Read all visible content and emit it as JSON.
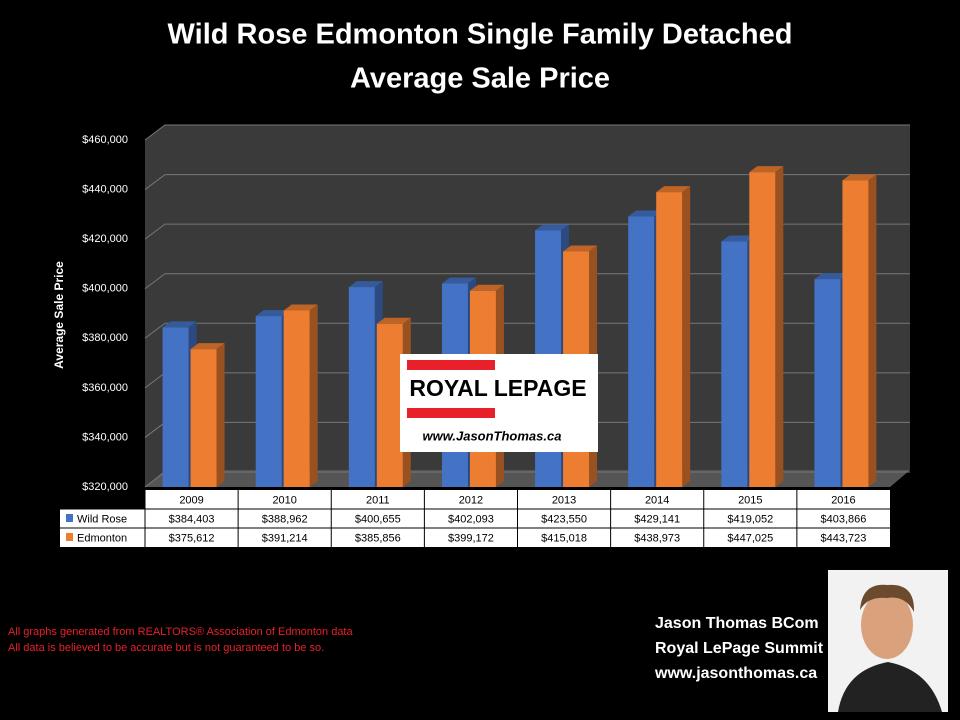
{
  "chart_data": {
    "type": "bar",
    "title": "Wild Rose Edmonton Single Family Detached",
    "subtitle": "Average Sale Price",
    "y_label": "Average Sale Price",
    "categories": [
      "2009",
      "2010",
      "2011",
      "2012",
      "2013",
      "2014",
      "2015",
      "2016"
    ],
    "series": [
      {
        "name": "Wild Rose",
        "color": "#4472c4",
        "values": [
          384403,
          388962,
          400655,
          402093,
          423550,
          429141,
          419052,
          403866
        ],
        "value_labels": [
          "$384,403",
          "$388,962",
          "$400,655",
          "$402,093",
          "$423,550",
          "$429,141",
          "$419,052",
          "$403,866"
        ]
      },
      {
        "name": "Edmonton",
        "color": "#ed7d31",
        "values": [
          375612,
          391214,
          385856,
          399172,
          415018,
          438973,
          447025,
          443723
        ],
        "value_labels": [
          "$375,612",
          "$391,214",
          "$385,856",
          "$399,172",
          "$415,018",
          "$438,973",
          "$447,025",
          "$443,723"
        ]
      }
    ],
    "ylim": [
      320000,
      460000
    ],
    "yticks": [
      {
        "value": 320000,
        "label": "$320,000"
      },
      {
        "value": 340000,
        "label": "$340,000"
      },
      {
        "value": 360000,
        "label": "$360,000"
      },
      {
        "value": 380000,
        "label": "$380,000"
      },
      {
        "value": 400000,
        "label": "$400,000"
      },
      {
        "value": 420000,
        "label": "$420,000"
      },
      {
        "value": 440000,
        "label": "$440,000"
      },
      {
        "value": 460000,
        "label": "$460,000"
      }
    ],
    "grid": true
  },
  "logo": {
    "name": "ROYAL LEPAGE",
    "url": "www.JasonThomas.ca"
  },
  "footnotes": [
    "All graphs generated from REALTORS® Association of Edmonton data",
    "All data is believed to be accurate but is not guaranteed to be so."
  ],
  "contact": [
    "Jason Thomas BCom",
    "Royal LePage Summit",
    "www.jasonthomas.ca"
  ]
}
